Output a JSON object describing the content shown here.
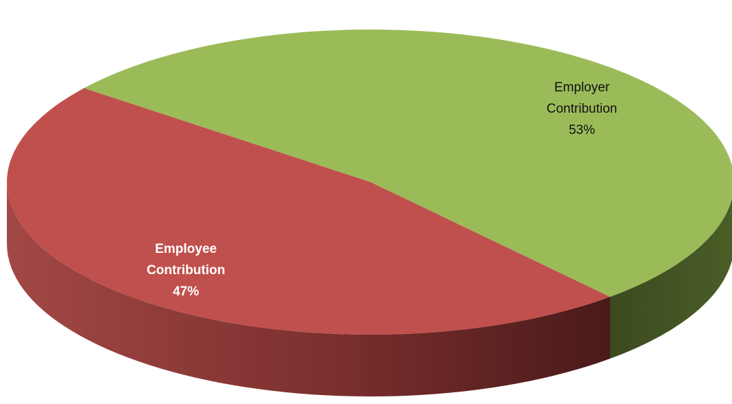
{
  "chart_data": {
    "type": "pie",
    "title": "",
    "slices": [
      {
        "name": "Employer Contribution",
        "value": 53,
        "label_lines": [
          "Employer",
          "Contribution",
          "53%"
        ],
        "color": "#9BBB59",
        "side_dark": "#3E4C22",
        "side_light": "#5F7A2F"
      },
      {
        "name": "Employee Contribution",
        "value": 47,
        "label_lines": [
          "Employee",
          "Contribution",
          "47%"
        ],
        "color": "#C0504D",
        "side_dark": "#4A1A1A",
        "side_light": "#9E4542"
      }
    ],
    "legend": "none",
    "style": "3d-pie"
  }
}
